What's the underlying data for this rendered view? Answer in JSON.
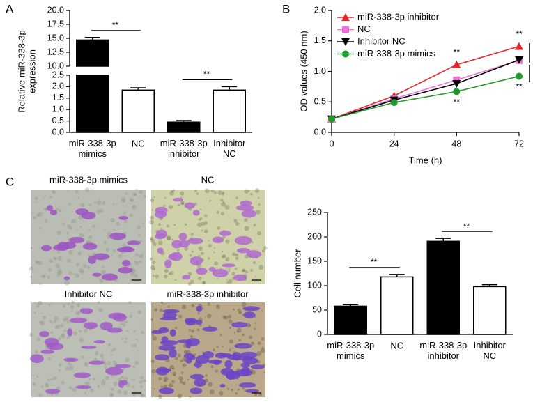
{
  "figure": {
    "panel_labels": [
      "A",
      "B",
      "C"
    ],
    "images": [
      "miR-338-3p mimics",
      "NC",
      "Inhibitor NC",
      "miR-338-3p inhibitor"
    ]
  },
  "chart_data": [
    {
      "type": "bar",
      "ylabel": "Relative miR-338-3p\nexpression",
      "categories": [
        "miR-338-3p\nmimics",
        "NC",
        "miR-338-3p\ninhibitor",
        "Inhibitor\nNC"
      ],
      "values": [
        14.7,
        1.85,
        0.45,
        1.85
      ],
      "errors": [
        0.45,
        0.1,
        0.07,
        0.15
      ],
      "colors": [
        "#000000",
        "#ffffff",
        "#000000",
        "#ffffff"
      ],
      "ylim": [
        0,
        20
      ],
      "axis_break": [
        2.5,
        10
      ],
      "yticks": [
        {
          "value": 0,
          "label": "0.0"
        },
        0.5,
        {
          "value": 1,
          "label": "1.0"
        },
        1.5,
        {
          "value": 2,
          "label": "2.0"
        },
        2.5,
        {
          "value": 10,
          "label": "10.0"
        },
        12.5,
        {
          "value": 15,
          "label": "15.0"
        },
        17.5,
        {
          "value": 20,
          "label": "20.0"
        }
      ],
      "annotations": [
        {
          "text": "**",
          "from": 0,
          "to": 1
        },
        {
          "text": "**",
          "from": 2,
          "to": 3
        }
      ]
    },
    {
      "type": "line",
      "xlabel": "Time (h)",
      "ylabel": "OD values (450 nm)",
      "x": [
        0,
        24,
        48,
        72
      ],
      "xlim": [
        0,
        72
      ],
      "xticks": [
        0,
        24,
        48,
        72
      ],
      "ylim": [
        0,
        2
      ],
      "yticks": [
        {
          "value": 0,
          "label": "0.0"
        },
        0.5,
        {
          "value": 1,
          "label": "1.0"
        },
        1.5,
        {
          "value": 2,
          "label": "2.0"
        }
      ],
      "legend": "upper left",
      "series": [
        {
          "name": "miR-338-3p inhibitor",
          "color": "#e8232a",
          "marker": "triangle",
          "values": [
            0.22,
            0.6,
            1.11,
            1.41
          ]
        },
        {
          "name": "NC",
          "color": "#ee6fd8",
          "marker": "square",
          "values": [
            0.22,
            0.55,
            0.86,
            1.18
          ]
        },
        {
          "name": "Inhibitor NC",
          "color": "#000000",
          "marker": "triangle-down",
          "values": [
            0.22,
            0.53,
            0.8,
            1.19
          ]
        },
        {
          "name": "miR-338-3p mimics",
          "color": "#1e9a2c",
          "marker": "circle",
          "values": [
            0.22,
            0.49,
            0.67,
            0.92
          ]
        }
      ],
      "annotations": [
        {
          "text": "**",
          "series": 0,
          "index": 2,
          "position": "above"
        },
        {
          "text": "**",
          "series": 3,
          "index": 2,
          "position": "below"
        },
        {
          "text": "**",
          "series": 0,
          "index": 3,
          "position": "above"
        },
        {
          "text": "**",
          "series": 3,
          "index": 3,
          "position": "below"
        }
      ]
    },
    {
      "type": "bar",
      "ylabel": "Cell number",
      "categories": [
        "miR-338-3p\nmimics",
        "NC",
        "miR-338-3p\ninhibitor",
        "Inhibitor\nNC"
      ],
      "values": [
        58,
        118,
        191,
        98
      ],
      "errors": [
        3,
        5,
        6,
        4
      ],
      "colors": [
        "#000000",
        "#ffffff",
        "#000000",
        "#ffffff"
      ],
      "ylim": [
        0,
        250
      ],
      "yticks": [
        0,
        50,
        100,
        150,
        200,
        250
      ],
      "annotations": [
        {
          "text": "**",
          "from": 0,
          "to": 1
        },
        {
          "text": "**",
          "from": 2,
          "to": 3
        }
      ]
    }
  ]
}
